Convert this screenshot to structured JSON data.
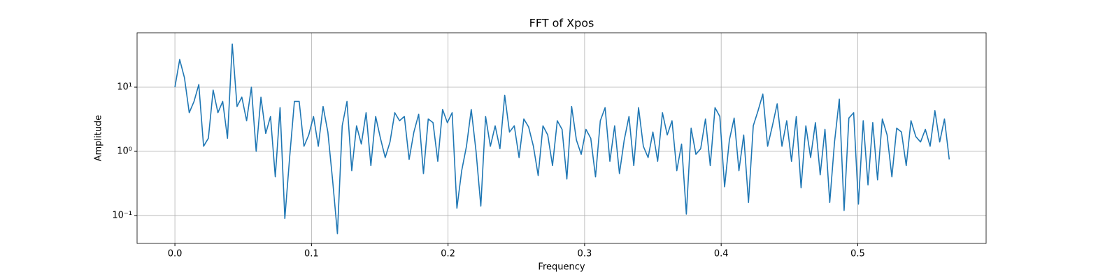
{
  "chart_data": {
    "type": "line",
    "title": "FFT of Xpos",
    "x_label": "Frequency",
    "y_label": "Amplitude",
    "x": [
      0,
      0.0035,
      0.007,
      0.0105,
      0.014,
      0.0175,
      0.021,
      0.0245,
      0.028,
      0.0315,
      0.035,
      0.0385,
      0.042,
      0.0455,
      0.049,
      0.0525,
      0.056,
      0.0595,
      0.063,
      0.0665,
      0.07,
      0.0735,
      0.077,
      0.0805,
      0.084,
      0.0875,
      0.091,
      0.0945,
      0.098,
      0.1015,
      0.105,
      0.1085,
      0.112,
      0.1155,
      0.119,
      0.1225,
      0.126,
      0.1295,
      0.133,
      0.1365,
      0.14,
      0.1435,
      0.147,
      0.1505,
      0.154,
      0.1575,
      0.161,
      0.1645,
      0.168,
      0.1715,
      0.175,
      0.1785,
      0.182,
      0.1855,
      0.189,
      0.1925,
      0.196,
      0.1995,
      0.203,
      0.2065,
      0.21,
      0.2135,
      0.217,
      0.2205,
      0.224,
      0.2275,
      0.231,
      0.2345,
      0.238,
      0.2415,
      0.245,
      0.2485,
      0.252,
      0.2555,
      0.259,
      0.2625,
      0.266,
      0.2695,
      0.273,
      0.2765,
      0.28,
      0.2835,
      0.287,
      0.2905,
      0.294,
      0.2975,
      0.301,
      0.3045,
      0.308,
      0.3115,
      0.315,
      0.3185,
      0.322,
      0.3255,
      0.329,
      0.3325,
      0.336,
      0.3395,
      0.343,
      0.3465,
      0.35,
      0.3535,
      0.357,
      0.3605,
      0.364,
      0.3675,
      0.371,
      0.3745,
      0.378,
      0.3815,
      0.385,
      0.3885,
      0.392,
      0.3955,
      0.399,
      0.4025,
      0.406,
      0.4095,
      0.413,
      0.4165,
      0.42,
      0.4235,
      0.427,
      0.4305,
      0.434,
      0.4375,
      0.441,
      0.4445,
      0.448,
      0.4515,
      0.455,
      0.4585,
      0.462,
      0.4655,
      0.469,
      0.4725,
      0.476,
      0.4795,
      0.483,
      0.4865,
      0.49,
      0.4935,
      0.497,
      0.5005,
      0.504,
      0.5075,
      0.511,
      0.5145,
      0.518,
      0.5215,
      0.525,
      0.5285,
      0.532,
      0.5355,
      0.539,
      0.5425,
      0.546,
      0.5495,
      0.553,
      0.5565,
      0.56,
      0.5635,
      0.567
    ],
    "series": [
      {
        "color": "#1f77b4",
        "values": [
          10,
          27,
          14,
          4,
          6,
          11,
          1.2,
          1.6,
          9,
          4,
          6,
          1.6,
          47,
          5,
          7,
          3,
          10,
          1.0,
          7,
          1.9,
          3.5,
          0.4,
          4.8,
          0.09,
          0.8,
          6,
          6,
          1.2,
          1.8,
          3.5,
          1.2,
          5,
          2,
          0.35,
          0.052,
          2.5,
          6,
          0.5,
          2.5,
          1.3,
          4,
          0.6,
          3.5,
          1.6,
          0.8,
          1.4,
          4,
          3,
          3.5,
          0.75,
          2,
          3.8,
          0.45,
          3.2,
          2.8,
          0.7,
          4.5,
          2.8,
          4,
          0.13,
          0.5,
          1.2,
          4.5,
          1,
          0.14,
          3.5,
          1.2,
          2.5,
          1.1,
          7.5,
          2,
          2.5,
          0.8,
          3.2,
          2.4,
          1.2,
          0.42,
          2.5,
          1.8,
          0.6,
          3,
          2.2,
          0.37,
          5,
          1.5,
          0.9,
          2.2,
          1.6,
          0.4,
          3,
          4.8,
          0.7,
          2.5,
          0.45,
          1.5,
          3.5,
          0.6,
          4.8,
          1.2,
          0.8,
          2,
          0.7,
          4,
          1.8,
          3,
          0.5,
          1.3,
          0.105,
          2.3,
          0.9,
          1.1,
          3.2,
          0.6,
          4.8,
          3.5,
          0.28,
          1.5,
          3.3,
          0.5,
          1.8,
          0.16,
          2.5,
          4.3,
          7.8,
          1.2,
          2.5,
          5.5,
          1.2,
          3,
          0.7,
          3.5,
          0.27,
          2.5,
          0.8,
          2.8,
          0.43,
          2.2,
          0.16,
          1.4,
          6.5,
          0.12,
          3.3,
          4,
          0.15,
          3,
          0.3,
          2.8,
          0.36,
          3.2,
          1.8,
          0.4,
          2.3,
          2,
          0.6,
          3,
          1.7,
          1.4,
          2.2,
          1.2,
          4.3,
          1.4,
          3.2,
          0.75
        ]
      }
    ],
    "xlim": [
      -0.0277,
      0.594
    ],
    "ylim": [
      0.0367,
      70.5
    ],
    "y_scale": "log",
    "grid": true,
    "xticks": [
      {
        "value": 0,
        "label": "0.0"
      },
      0.1,
      0.2,
      0.3,
      0.4,
      0.5
    ],
    "yticks": [
      {
        "value": 0.1,
        "label": "10⁻¹"
      },
      {
        "value": 1,
        "label": "10⁰"
      },
      {
        "value": 10,
        "label": "10¹"
      }
    ]
  }
}
